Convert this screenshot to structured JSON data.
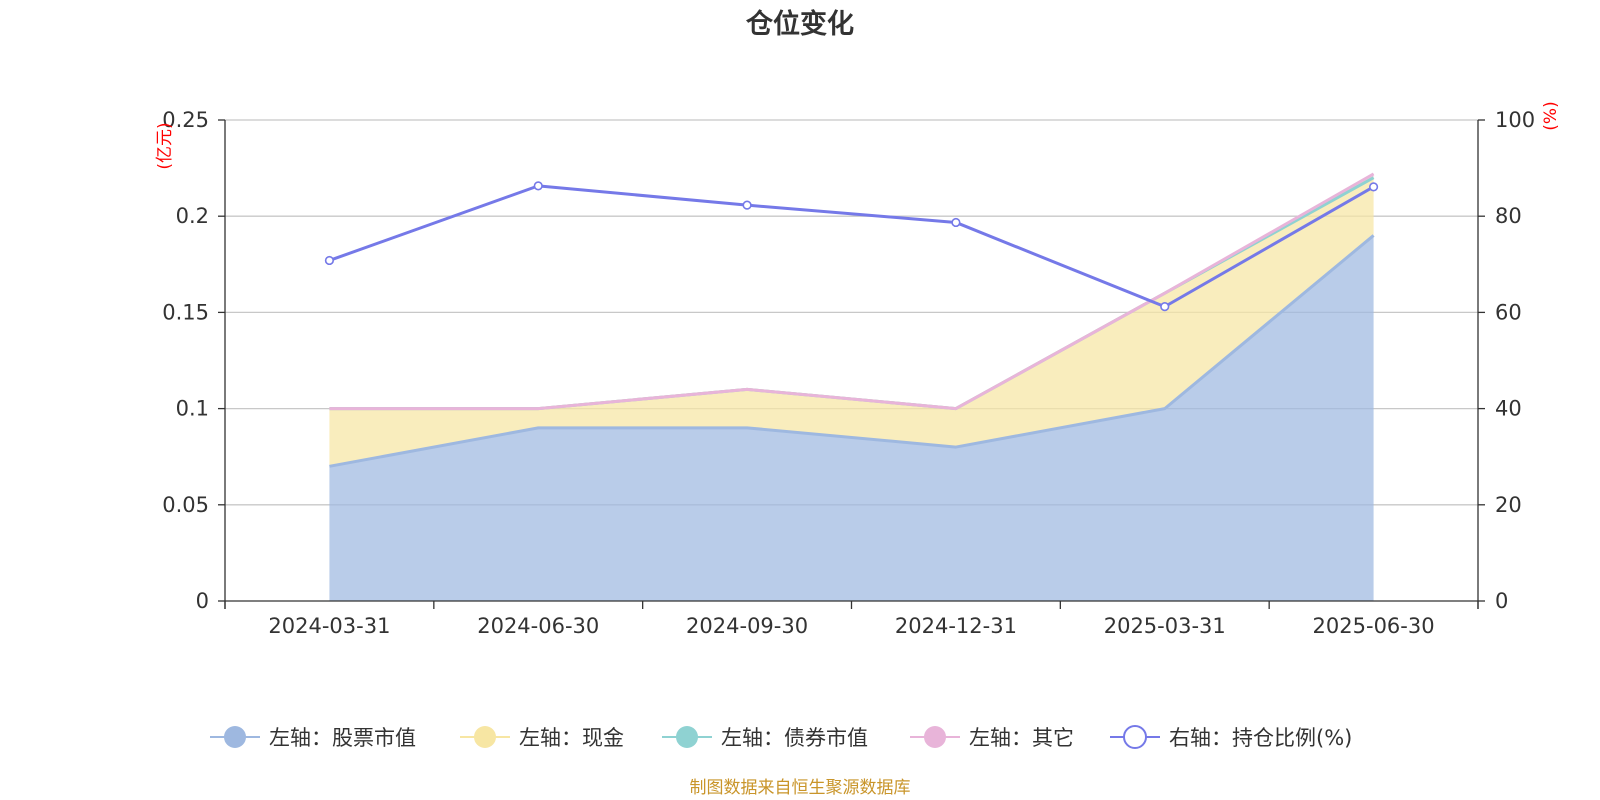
{
  "chart_data": {
    "type": "area",
    "title": "仓位变化",
    "categories": [
      "2024-03-31",
      "2024-06-30",
      "2024-09-30",
      "2024-12-31",
      "2025-03-31",
      "2025-06-30"
    ],
    "left_axis": {
      "unit": "(亿元)",
      "ylim": [
        0,
        0.25
      ],
      "ticks": [
        "0",
        "0.05",
        "0.1",
        "0.15",
        "0.2",
        "0.25"
      ]
    },
    "right_axis": {
      "unit": "(%)",
      "ylim": [
        0,
        100
      ],
      "ticks": [
        "0",
        "20",
        "40",
        "60",
        "80",
        "100"
      ]
    },
    "series": [
      {
        "name": "左轴：股票市值",
        "axis": "left",
        "kind": "stacked-area",
        "color": "#9eb8e0",
        "values": [
          0.07,
          0.09,
          0.09,
          0.08,
          0.1,
          0.19
        ]
      },
      {
        "name": "左轴：现金",
        "axis": "left",
        "kind": "stacked-area",
        "color": "#f7e6a3",
        "values": [
          0.03,
          0.01,
          0.02,
          0.02,
          0.06,
          0.03
        ]
      },
      {
        "name": "左轴：债券市值",
        "axis": "left",
        "kind": "stacked-area",
        "color": "#8fd2d2",
        "values": [
          0,
          0,
          0,
          0,
          0,
          0
        ]
      },
      {
        "name": "左轴：其它",
        "axis": "left",
        "kind": "stacked-area",
        "color": "#e8b4d9",
        "values": [
          0,
          0,
          0,
          0,
          0,
          0.002
        ]
      },
      {
        "name": "右轴：持仓比例(%)",
        "axis": "right",
        "kind": "line",
        "color": "#7579e8",
        "values": [
          70.8,
          86.3,
          82.3,
          78.7,
          61.2,
          86.1
        ]
      }
    ],
    "grid": true,
    "legend_position": "bottom"
  },
  "source_note": "制图数据来自恒生聚源数据库"
}
